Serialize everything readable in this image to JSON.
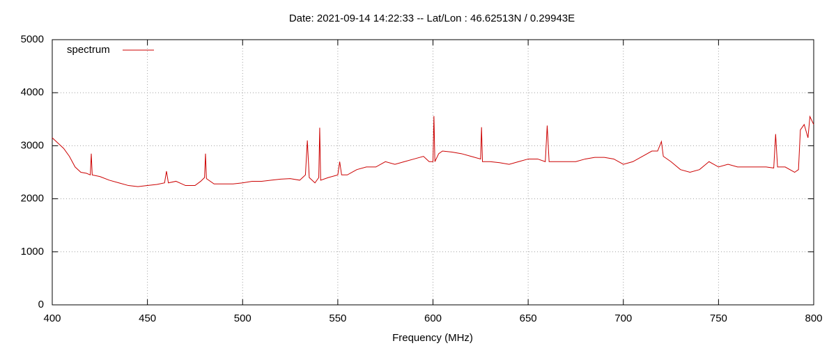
{
  "chart_data": {
    "type": "line",
    "title": "Date: 2021-09-14 14:22:33  --  Lat/Lon : 46.62513N / 0.29943E",
    "x_label": "Frequency (MHz)",
    "x": [
      400,
      403,
      406,
      409,
      412,
      415,
      418,
      420,
      420.5,
      421,
      425,
      430,
      435,
      440,
      445,
      450,
      455,
      459,
      460,
      461,
      465,
      470,
      475,
      478,
      480,
      480.5,
      481,
      485,
      490,
      495,
      500,
      505,
      510,
      515,
      520,
      525,
      530,
      533,
      534,
      535,
      538,
      540,
      540.5,
      541,
      545,
      550,
      551,
      552,
      555,
      560,
      565,
      570,
      575,
      580,
      585,
      590,
      595,
      598,
      600,
      600.5,
      601,
      603,
      605,
      610,
      615,
      620,
      625,
      625.5,
      626,
      630,
      635,
      640,
      645,
      650,
      655,
      659,
      660,
      661,
      665,
      670,
      675,
      680,
      685,
      690,
      695,
      700,
      705,
      710,
      715,
      718,
      720,
      721,
      725,
      730,
      735,
      740,
      745,
      750,
      755,
      760,
      765,
      770,
      775,
      779,
      780,
      781,
      785,
      790,
      792,
      793,
      795,
      797,
      798,
      800
    ],
    "series": [
      {
        "name": "spectrum",
        "color": "#cc0000",
        "values": [
          3150,
          3050,
          2950,
          2800,
          2600,
          2500,
          2480,
          2450,
          2850,
          2450,
          2420,
          2350,
          2300,
          2250,
          2230,
          2250,
          2270,
          2300,
          2520,
          2300,
          2330,
          2250,
          2250,
          2330,
          2400,
          2850,
          2380,
          2280,
          2280,
          2280,
          2300,
          2330,
          2330,
          2350,
          2370,
          2380,
          2350,
          2450,
          3100,
          2400,
          2300,
          2400,
          3340,
          2350,
          2400,
          2450,
          2700,
          2450,
          2450,
          2550,
          2600,
          2600,
          2700,
          2650,
          2700,
          2750,
          2800,
          2700,
          2700,
          3560,
          2700,
          2850,
          2900,
          2880,
          2850,
          2800,
          2750,
          3350,
          2700,
          2700,
          2680,
          2650,
          2700,
          2750,
          2750,
          2700,
          3380,
          2700,
          2700,
          2700,
          2700,
          2750,
          2780,
          2780,
          2750,
          2650,
          2700,
          2800,
          2900,
          2900,
          3080,
          2800,
          2700,
          2550,
          2500,
          2550,
          2700,
          2600,
          2650,
          2600,
          2600,
          2600,
          2600,
          2580,
          3220,
          2600,
          2600,
          2500,
          2550,
          3300,
          3400,
          3150,
          3550,
          3400
        ]
      }
    ],
    "xlim": [
      400,
      800
    ],
    "xticks": [
      400,
      450,
      500,
      550,
      600,
      650,
      700,
      750,
      800
    ],
    "ylim": [
      0,
      5000
    ],
    "yticks": [
      0,
      1000,
      2000,
      3000,
      4000,
      5000
    ],
    "grid": true,
    "legend": "top-left"
  }
}
